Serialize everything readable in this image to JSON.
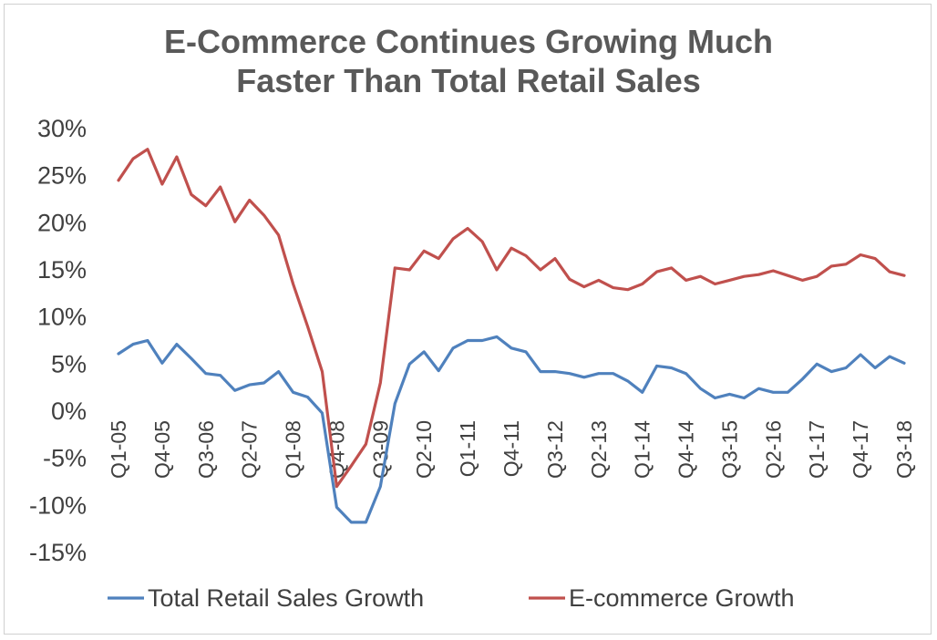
{
  "chart_data": {
    "type": "line",
    "title_lines": [
      "E-Commerce Continues Growing Much",
      "Faster Than Total Retail Sales"
    ],
    "xlabel": "",
    "ylabel": "",
    "ylim": [
      -15,
      30
    ],
    "y_ticks": [
      30,
      25,
      20,
      15,
      10,
      5,
      0,
      -5,
      -10,
      -15
    ],
    "y_tick_labels": [
      "30%",
      "25%",
      "20%",
      "15%",
      "10%",
      "5%",
      "0%",
      "-5%",
      "-10%",
      "-15%"
    ],
    "grid": false,
    "legend_position": "bottom",
    "categories": [
      "Q1-05",
      "Q2-05",
      "Q3-05",
      "Q4-05",
      "Q1-06",
      "Q2-06",
      "Q3-06",
      "Q4-06",
      "Q1-07",
      "Q2-07",
      "Q3-07",
      "Q4-07",
      "Q1-08",
      "Q2-08",
      "Q3-08",
      "Q4-08",
      "Q1-09",
      "Q2-09",
      "Q3-09",
      "Q4-09",
      "Q1-10",
      "Q2-10",
      "Q3-10",
      "Q4-10",
      "Q1-11",
      "Q2-11",
      "Q3-11",
      "Q4-11",
      "Q1-12",
      "Q2-12",
      "Q3-12",
      "Q4-12",
      "Q1-13",
      "Q2-13",
      "Q3-13",
      "Q4-13",
      "Q1-14",
      "Q2-14",
      "Q3-14",
      "Q4-14",
      "Q1-15",
      "Q2-15",
      "Q3-15",
      "Q4-15",
      "Q1-16",
      "Q2-16",
      "Q3-16",
      "Q4-16",
      "Q1-17",
      "Q2-17",
      "Q3-17",
      "Q4-17",
      "Q1-18",
      "Q2-18",
      "Q3-18"
    ],
    "x_tick_labels": [
      {
        "index": 0,
        "label": "Q1-05"
      },
      {
        "index": 3,
        "label": "Q4-05"
      },
      {
        "index": 6,
        "label": "Q3-06"
      },
      {
        "index": 9,
        "label": "Q2-07"
      },
      {
        "index": 12,
        "label": "Q1-08"
      },
      {
        "index": 15,
        "label": "Q4-08"
      },
      {
        "index": 18,
        "label": "Q3-09"
      },
      {
        "index": 21,
        "label": "Q2-10"
      },
      {
        "index": 24,
        "label": "Q1-11"
      },
      {
        "index": 27,
        "label": "Q4-11"
      },
      {
        "index": 30,
        "label": "Q3-12"
      },
      {
        "index": 33,
        "label": "Q2-13"
      },
      {
        "index": 36,
        "label": "Q1-14"
      },
      {
        "index": 39,
        "label": "Q4-14"
      },
      {
        "index": 42,
        "label": "Q3-15"
      },
      {
        "index": 45,
        "label": "Q2-16"
      },
      {
        "index": 48,
        "label": "Q1-17"
      },
      {
        "index": 51,
        "label": "Q4-17"
      },
      {
        "index": 54,
        "label": "Q3-18"
      }
    ],
    "series": [
      {
        "name": "Total Retail Sales Growth",
        "color": "#4f81bd",
        "values": [
          6.1,
          7.1,
          7.5,
          5.1,
          7.1,
          5.6,
          4.0,
          3.8,
          2.2,
          2.8,
          3.0,
          4.2,
          2.0,
          1.5,
          -0.2,
          -10.2,
          -11.8,
          -11.8,
          -8.0,
          0.8,
          5.0,
          6.3,
          4.3,
          6.7,
          7.5,
          7.5,
          7.9,
          6.7,
          6.3,
          4.2,
          4.2,
          4.0,
          3.6,
          4.0,
          4.0,
          3.2,
          2.0,
          4.8,
          4.6,
          4.0,
          2.4,
          1.4,
          1.8,
          1.4,
          2.4,
          2.0,
          2.0,
          3.4,
          5.0,
          4.2,
          4.6,
          6.0,
          4.6,
          5.8,
          5.1
        ]
      },
      {
        "name": "E-commerce Growth",
        "color": "#c0504d",
        "values": [
          24.5,
          26.8,
          27.8,
          24.1,
          27.0,
          23.0,
          21.8,
          23.8,
          20.1,
          22.4,
          20.8,
          18.7,
          13.5,
          9.0,
          4.2,
          -8.0,
          -5.8,
          -3.5,
          3.0,
          15.2,
          15.0,
          17.0,
          16.2,
          18.3,
          19.4,
          18.0,
          15.0,
          17.3,
          16.5,
          15.0,
          16.2,
          14.0,
          13.2,
          13.9,
          13.1,
          12.9,
          13.5,
          14.8,
          15.2,
          13.9,
          14.3,
          13.5,
          13.9,
          14.3,
          14.5,
          14.9,
          14.4,
          13.9,
          14.3,
          15.4,
          15.6,
          16.6,
          16.2,
          14.8,
          14.4
        ]
      }
    ]
  }
}
